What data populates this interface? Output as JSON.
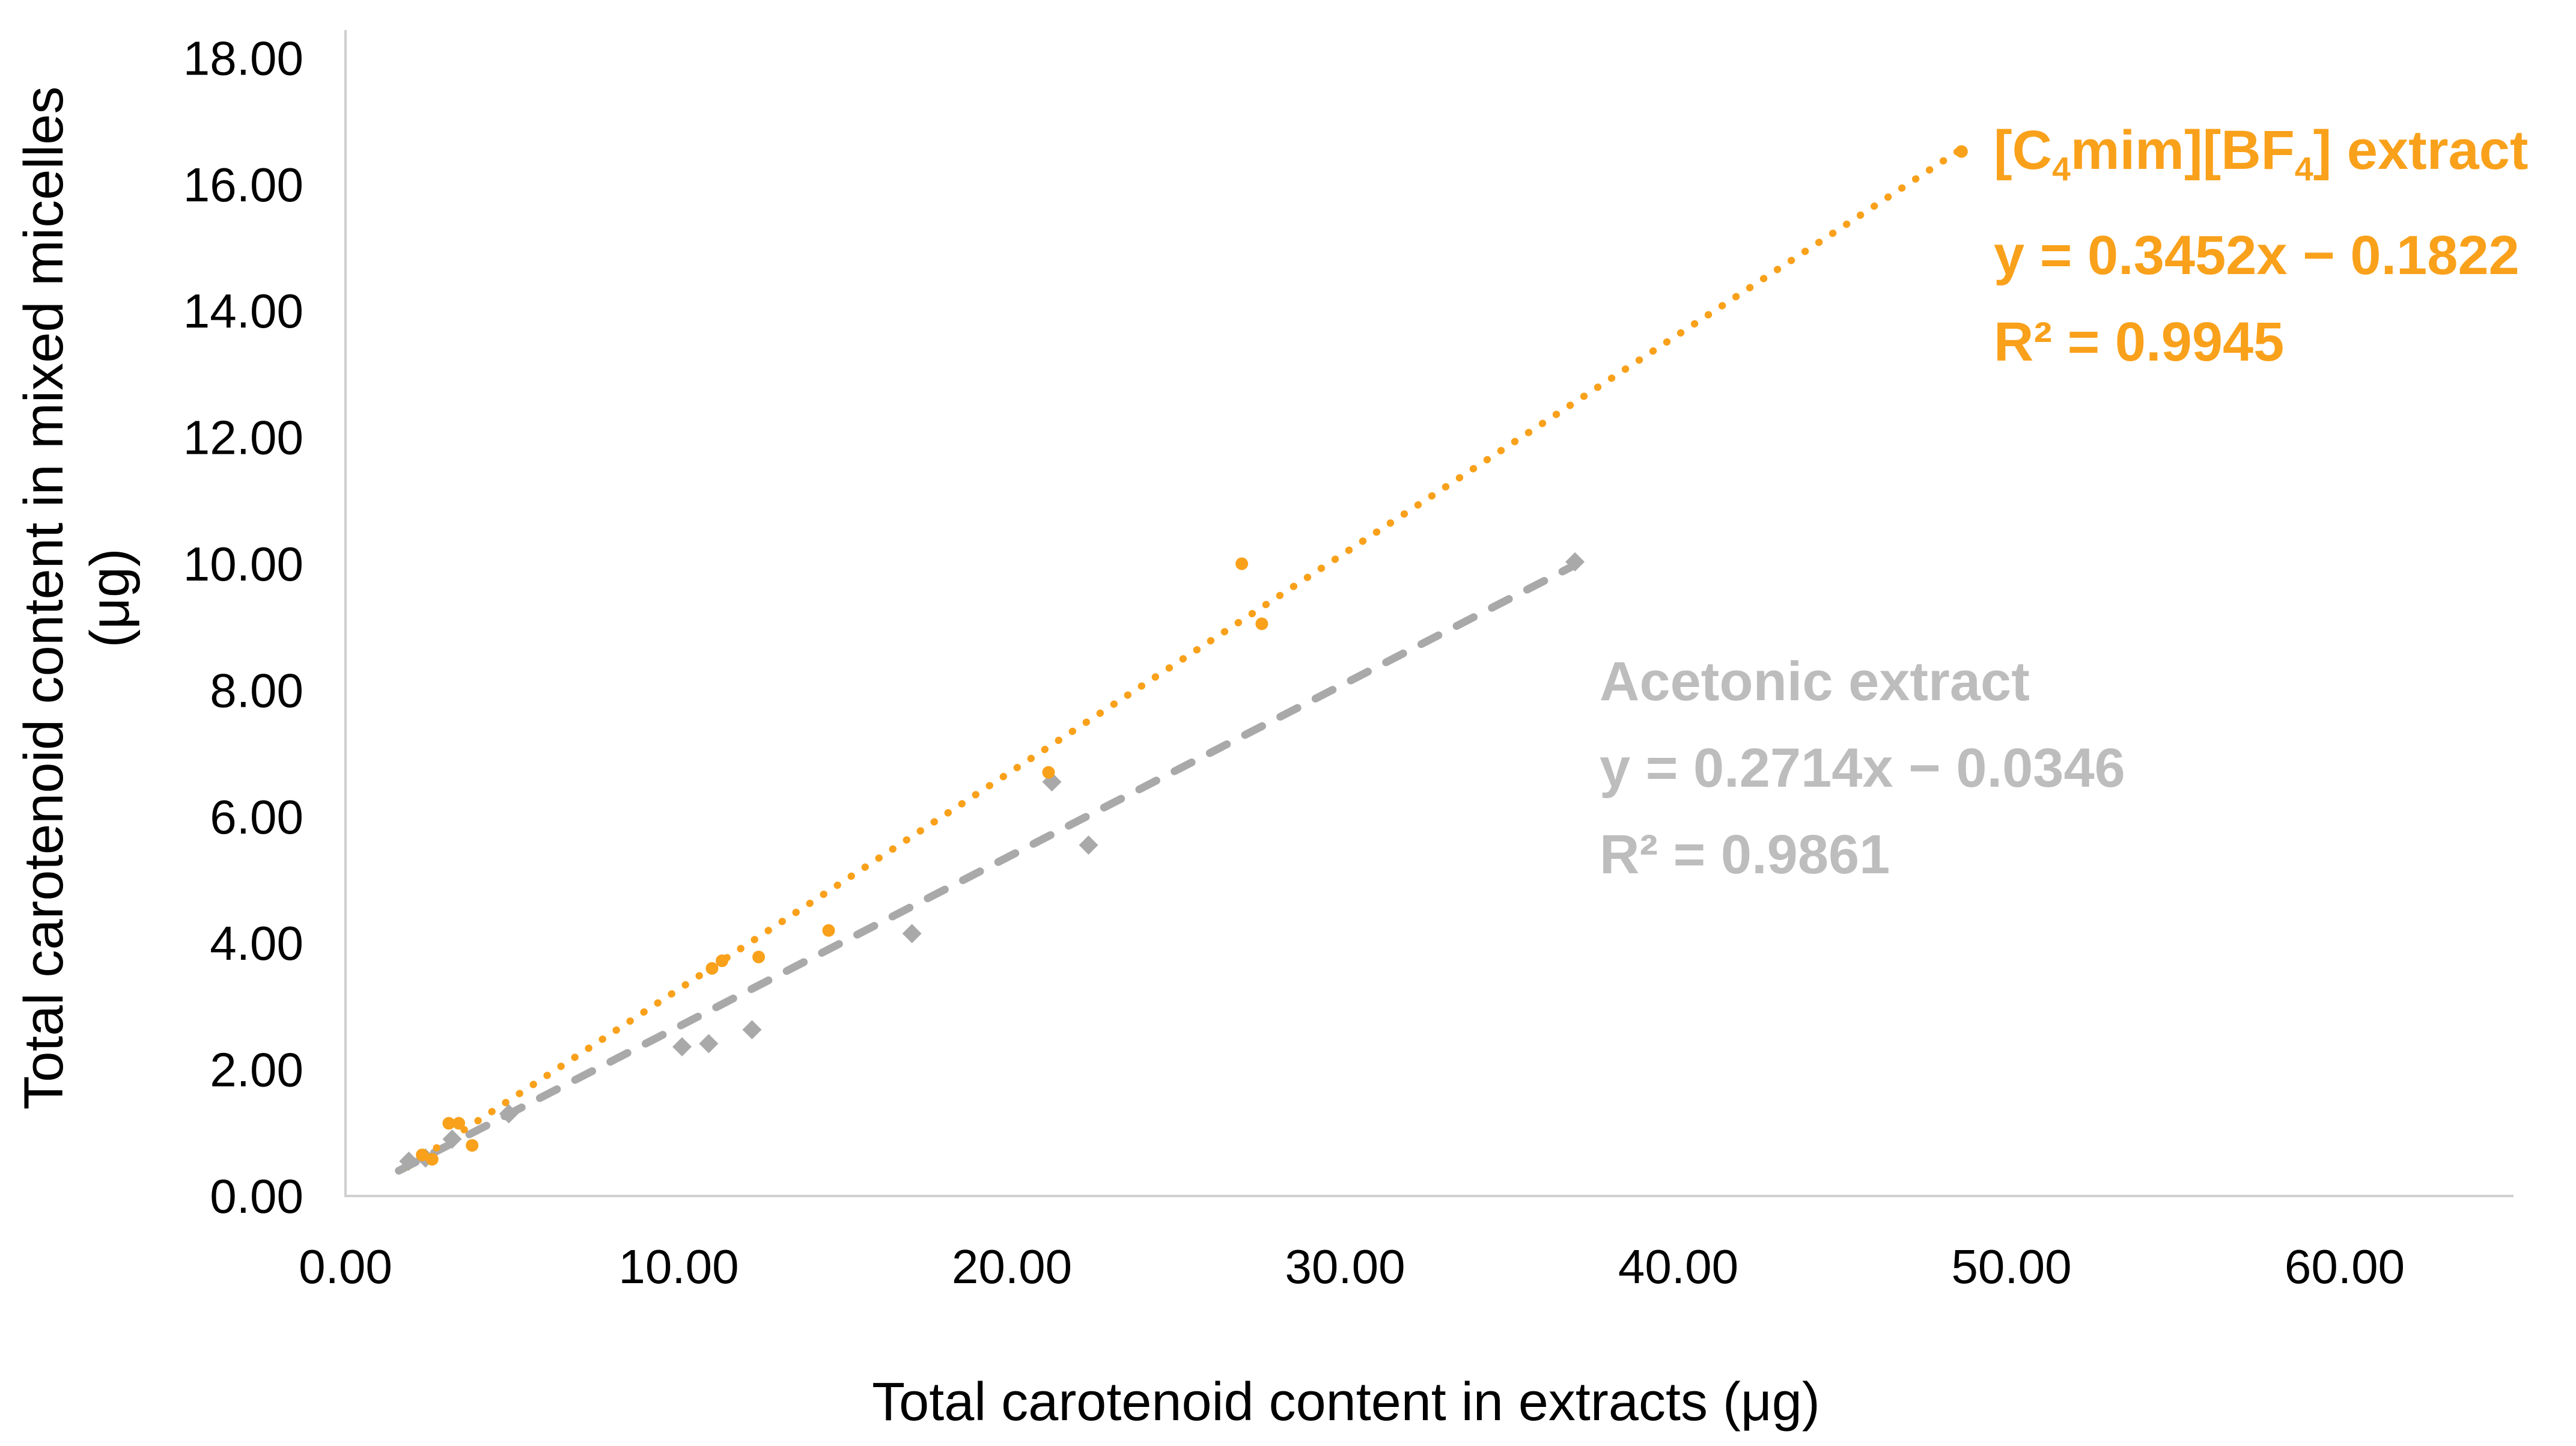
{
  "chart_data": {
    "type": "scatter",
    "title": "",
    "xlabel": "Total carotenoid content in extracts (μg)",
    "ylabel": "Total carotenoid content in mixed micelles (μg)",
    "ylabel_lines": [
      "Total carotenoid content in mixed micelles",
      "(μg)"
    ],
    "xlim": [
      0,
      60
    ],
    "ylim": [
      0,
      18
    ],
    "x_tick_step": 10,
    "y_tick_step": 2,
    "x_ticks": [
      "0.00",
      "10.00",
      "20.00",
      "30.00",
      "40.00",
      "50.00",
      "60.00"
    ],
    "y_ticks": [
      "0.00",
      "2.00",
      "4.00",
      "6.00",
      "8.00",
      "10.00",
      "12.00",
      "14.00",
      "16.00",
      "18.00"
    ],
    "grid": false,
    "legend_position": "inside-right-near-series-ends",
    "axis_line_color": "#CFCFCF",
    "tick_label_color": "#000000",
    "series": [
      {
        "name": "Acetonic extract",
        "label": "Acetonic extract",
        "equation": "y = 0.2714x − 0.0346",
        "r2": "R² = 0.9861",
        "marker": "diamond",
        "color": "#A9A9A9",
        "text_color": "#BDBDBD",
        "trendline": {
          "slope": 0.2714,
          "intercept": -0.0346,
          "style": "dashed",
          "x_start": 1.6,
          "x_end": 36.9
        },
        "points": [
          [
            1.9,
            0.55
          ],
          [
            2.4,
            0.6
          ],
          [
            3.2,
            0.9
          ],
          [
            4.9,
            1.3
          ],
          [
            10.1,
            2.36
          ],
          [
            10.9,
            2.41
          ],
          [
            12.2,
            2.63
          ],
          [
            17.0,
            4.15
          ],
          [
            21.2,
            6.55
          ],
          [
            22.3,
            5.55
          ],
          [
            36.9,
            10.03
          ]
        ]
      },
      {
        "name": "[C4mim][BF4] extract",
        "label_parts": [
          "[C",
          "4",
          "mim][BF",
          "4",
          "] extract"
        ],
        "equation": "y = 0.3452x − 0.1822",
        "r2": "R² = 0.9945",
        "marker": "circle",
        "color": "#F9A11B",
        "text_color": "#F9A11B",
        "trendline": {
          "slope": 0.3452,
          "intercept": -0.1822,
          "style": "dotted",
          "x_start": 1.9,
          "x_end": 48.5
        },
        "points": [
          [
            2.3,
            0.65
          ],
          [
            2.6,
            0.58
          ],
          [
            3.1,
            1.15
          ],
          [
            3.4,
            1.15
          ],
          [
            3.8,
            0.8
          ],
          [
            11.0,
            3.6
          ],
          [
            11.3,
            3.72
          ],
          [
            12.4,
            3.78
          ],
          [
            14.5,
            4.2
          ],
          [
            21.1,
            6.7
          ],
          [
            26.9,
            10.0
          ],
          [
            27.5,
            9.05
          ],
          [
            48.5,
            16.52
          ]
        ]
      }
    ]
  }
}
